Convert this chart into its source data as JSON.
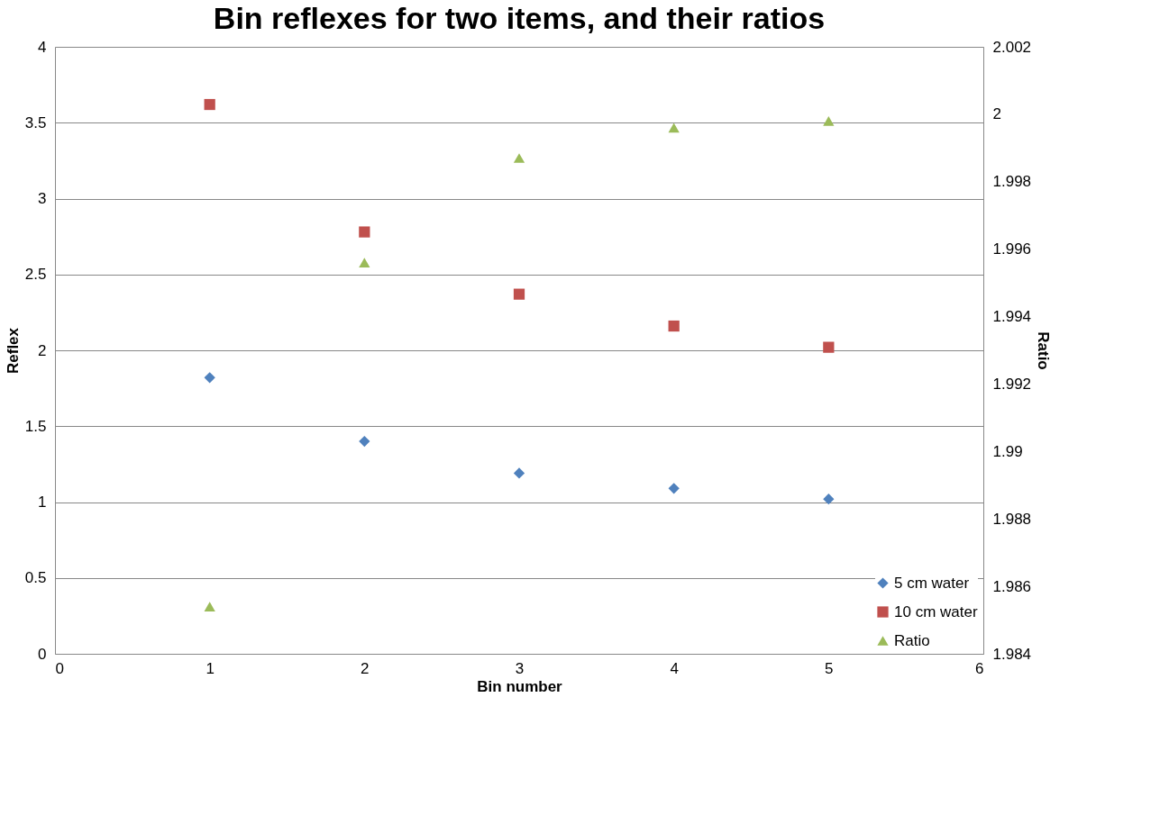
{
  "chart_data": {
    "type": "scatter",
    "title": "Bin reflexes for two items, and their ratios",
    "xlabel": "Bin number",
    "ylabel": "Reflex",
    "y2label": "Ratio",
    "x": [
      1,
      2,
      3,
      4,
      5
    ],
    "series": [
      {
        "name": "5 cm water",
        "color": "#4f81bd",
        "marker": "diamond",
        "values": [
          1.82,
          1.4,
          1.19,
          1.09,
          1.02
        ]
      },
      {
        "name": "10 cm water",
        "color": "#c0504d",
        "marker": "square",
        "values": [
          3.62,
          2.78,
          2.37,
          2.16,
          2.02
        ]
      },
      {
        "name": "Ratio",
        "color": "#9bbb59",
        "marker": "triangle",
        "axis": "y2",
        "values": [
          1.9854,
          1.9956,
          1.9987,
          1.9996,
          1.9998
        ]
      }
    ],
    "xlim": [
      0,
      6
    ],
    "xticks": [
      0,
      1,
      2,
      3,
      4,
      5,
      6
    ],
    "ylim": [
      0,
      4
    ],
    "yticks": [
      0,
      0.5,
      1,
      1.5,
      2,
      2.5,
      3,
      3.5,
      4
    ],
    "y2lim": [
      1.984,
      2.002
    ],
    "y2ticks": [
      1.984,
      1.986,
      1.988,
      1.99,
      1.992,
      1.994,
      1.996,
      1.998,
      2,
      2.002
    ],
    "grid": "y",
    "legend": "bottom right"
  }
}
